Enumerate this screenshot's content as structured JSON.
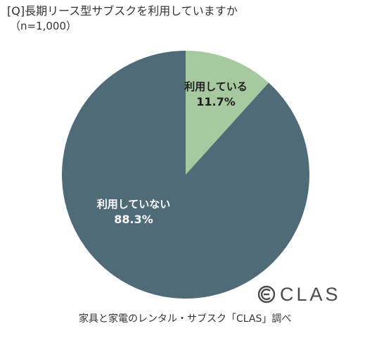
{
  "header": {
    "title": "[Q]長期リース型サブスクを利用していますか",
    "subtitle": "（n=1,000）"
  },
  "chart_data": {
    "type": "pie",
    "categories": [
      "利用している",
      "利用していない"
    ],
    "values": [
      11.7,
      88.3
    ],
    "value_labels": [
      "11.7%",
      "88.3%"
    ],
    "colors": [
      "#a7c9a0",
      "#4f6b78"
    ],
    "start": "12 o'clock",
    "direction": "clockwise",
    "legend": "none"
  },
  "logo": {
    "name": "clas-logo-icon",
    "text": "CLAS"
  },
  "footer": {
    "credit": "家具と家電のレンタル・サブスク「CLAS」調べ"
  }
}
